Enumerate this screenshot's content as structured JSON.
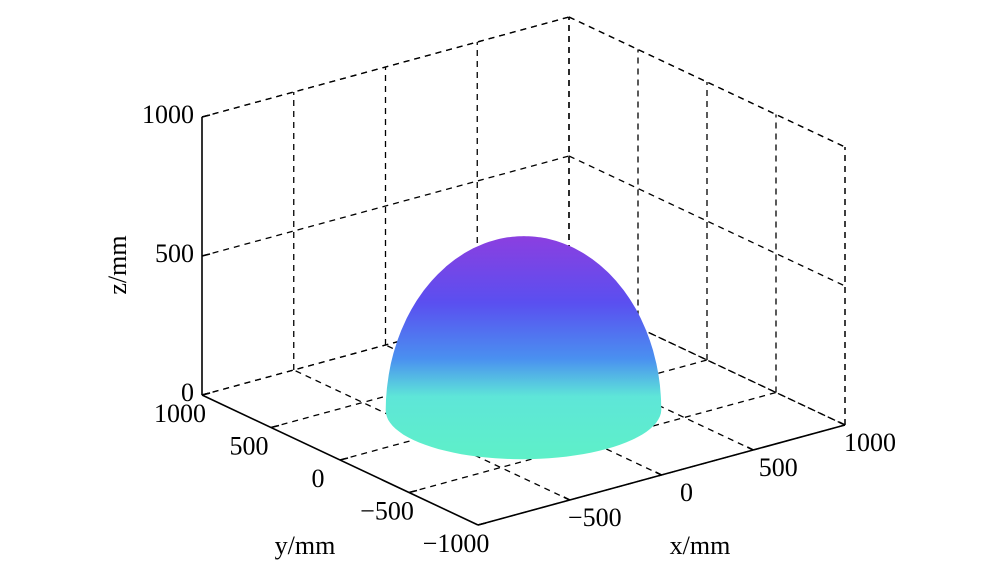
{
  "chart_data": {
    "type": "surface3d",
    "xlabel": "x/mm",
    "ylabel": "y/mm",
    "zlabel": "z/mm",
    "xlim": [
      -1000,
      1000
    ],
    "ylim": [
      -1000,
      1000
    ],
    "zlim": [
      0,
      1000
    ],
    "xticks": [
      {
        "value": -500,
        "label": "−500"
      },
      0,
      500,
      1000
    ],
    "yticks": [
      {
        "value": -1000,
        "label": "−1000"
      },
      {
        "value": -500,
        "label": "−500"
      },
      0,
      500,
      1000
    ],
    "zticks": [
      0,
      500,
      1000
    ],
    "grid": true,
    "surface": {
      "shape": "hemisphere",
      "radius": 600
    }
  }
}
